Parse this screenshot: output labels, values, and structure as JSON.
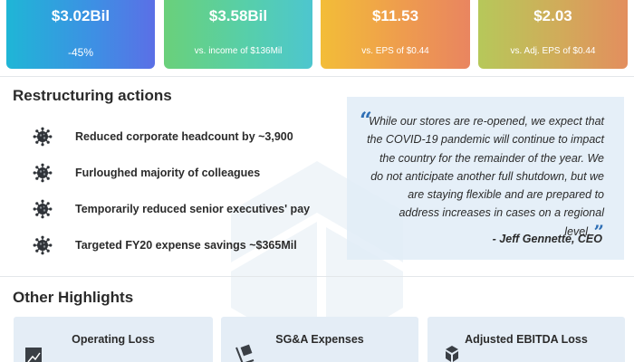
{
  "metrics": [
    {
      "value": "$3.02Bil",
      "sub": "-45%"
    },
    {
      "value": "$3.58Bil",
      "sub": "vs. income of $136Mil"
    },
    {
      "value": "$11.53",
      "sub": "vs. EPS of $0.44"
    },
    {
      "value": "$2.03",
      "sub": "vs. Adj. EPS of $0.44"
    }
  ],
  "restructuring": {
    "title": "Restructuring actions",
    "items": [
      {
        "icon": "virus-icon",
        "label": "Reduced corporate headcount by ~3,900"
      },
      {
        "icon": "virus-icon",
        "label": "Furloughed majority of colleagues"
      },
      {
        "icon": "virus-icon",
        "label": "Temporarily reduced senior executives' pay"
      },
      {
        "icon": "virus-icon",
        "label": "Targeted FY20 expense savings  ~$365Mil"
      }
    ]
  },
  "quote": {
    "text": "While our stores are re-opened, we expect that the COVID-19 pandemic will continue to impact the country for the remainder of the year. We do not anticipate another full shutdown, but we are staying flexible and are prepared to address increases in cases on a regional level.",
    "author": "- Jeff Gennette, CEO"
  },
  "highlights": {
    "title": "Other Highlights",
    "cards": [
      {
        "label": "Operating Loss",
        "icon": "chart-icon"
      },
      {
        "label": "SG&A Expenses",
        "icon": "hand-truck-icon"
      },
      {
        "label": "Adjusted EBITDA Loss",
        "icon": "boxes-icon"
      }
    ]
  },
  "colors": {
    "quote_mark": "#2f6fb5",
    "card1": "#3e8fe4",
    "card2": "#57cfa9",
    "card3": "#ee9c4e",
    "card4": "#d1ab5a",
    "highlight_bg": "#e4edf6"
  }
}
